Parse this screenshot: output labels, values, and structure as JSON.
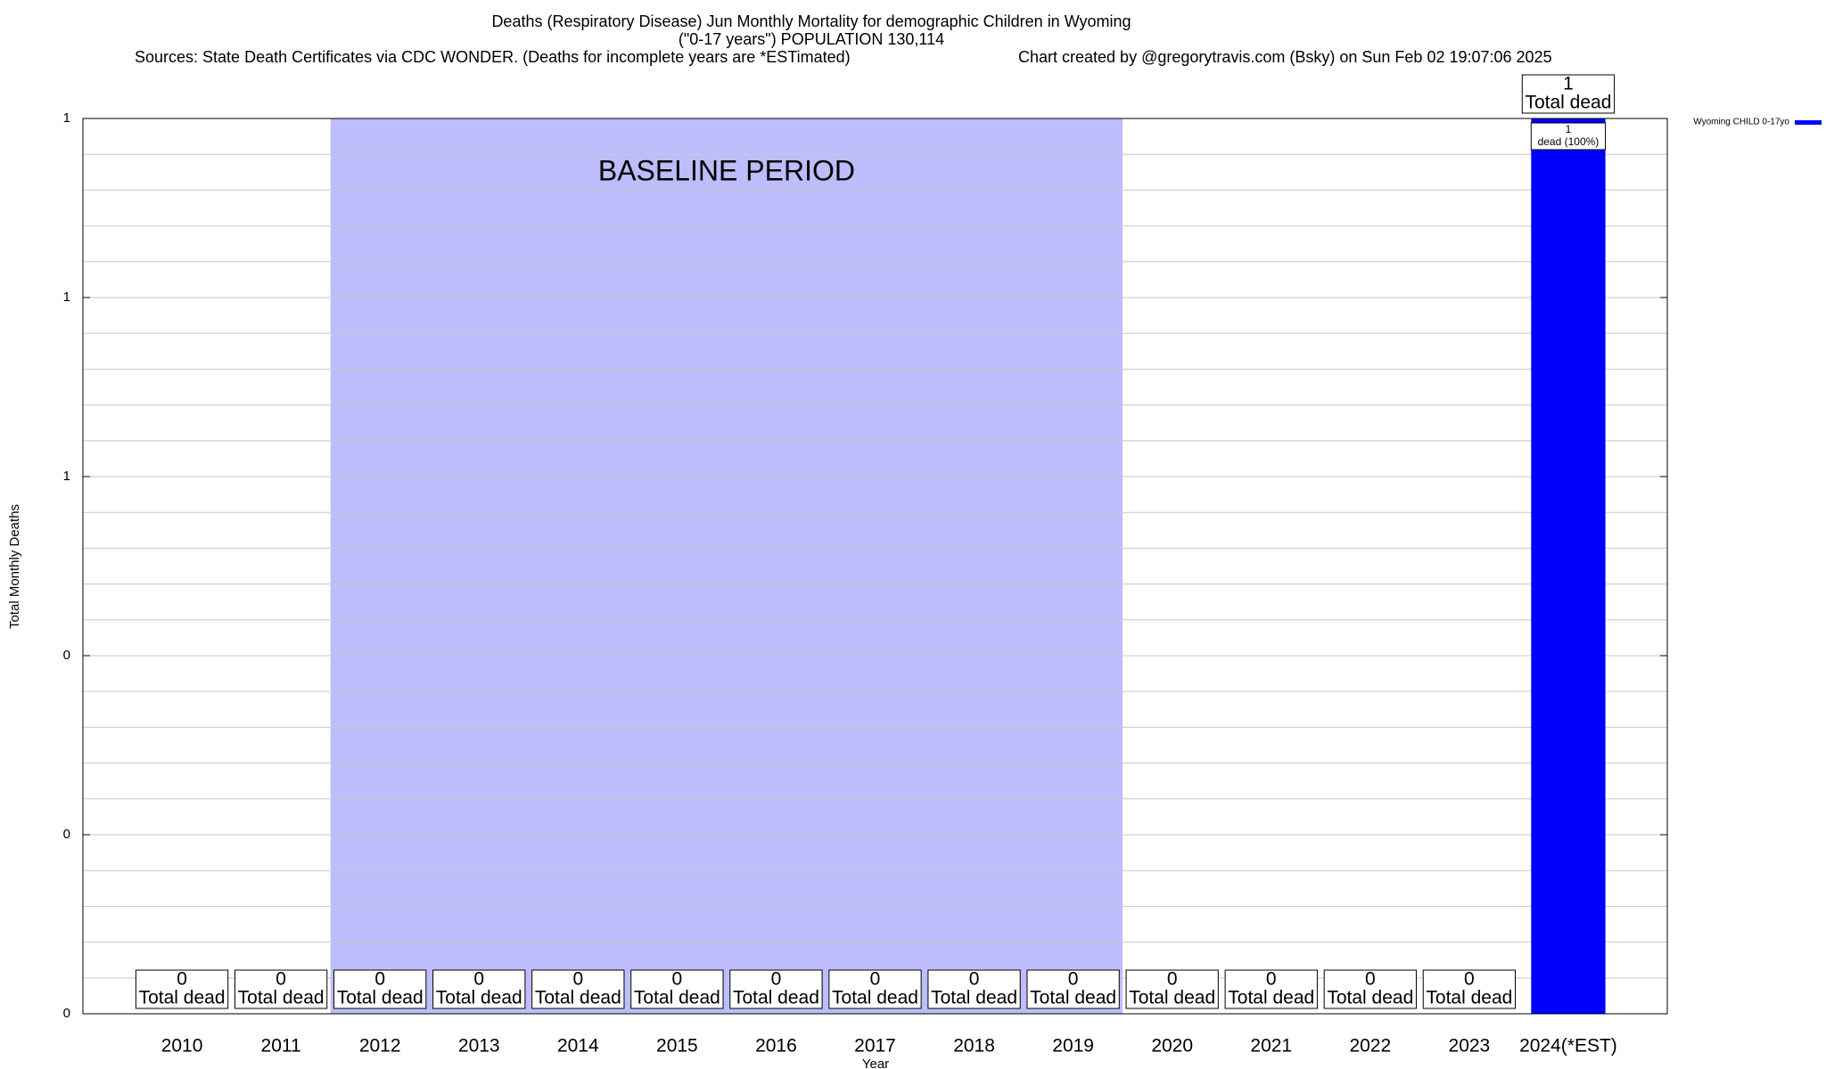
{
  "chart_data": {
    "type": "bar",
    "title": "Deaths (Respiratory Disease) Jun Monthly Mortality for demographic Children in Wyoming",
    "subtitle": "(\"0-17 years\") POPULATION 130,114",
    "sources": "Sources: State Death Certificates via CDC WONDER. (Deaths for incomplete years are *ESTimated)",
    "credit": "Chart created by @gregorytravis.com (Bsky) on Sun Feb 02 19:07:06 2025",
    "x_label": "Year",
    "y_label": "Total Monthly Deaths",
    "categories": [
      "2010",
      "2011",
      "2012",
      "2013",
      "2014",
      "2015",
      "2016",
      "2017",
      "2018",
      "2019",
      "2020",
      "2021",
      "2022",
      "2023",
      "2024(*EST)"
    ],
    "series": [
      {
        "name": "Wyoming CHILD 0-17yo",
        "color": "#0000ff",
        "values": [
          0,
          0,
          0,
          0,
          0,
          0,
          0,
          0,
          0,
          0,
          0,
          0,
          0,
          0,
          1
        ]
      }
    ],
    "data_label_text": "Total dead",
    "inner_labels": [
      null,
      null,
      null,
      null,
      null,
      null,
      null,
      null,
      null,
      null,
      null,
      null,
      null,
      null,
      "dead (100%)"
    ],
    "shaded_region": {
      "label": "BASELINE PERIOD",
      "from": "2012",
      "to": "2019",
      "color": "#bdbdfc"
    },
    "ylim": [
      0,
      1
    ],
    "yticks": [
      0,
      {
        "value": 0.2,
        "label": "0"
      },
      {
        "value": 0.4,
        "label": "0"
      },
      {
        "value": 0.6,
        "label": "1"
      },
      {
        "value": 0.8,
        "label": "1"
      },
      1
    ],
    "minor_divisions": 5,
    "grid": true,
    "legend": "top-right"
  }
}
